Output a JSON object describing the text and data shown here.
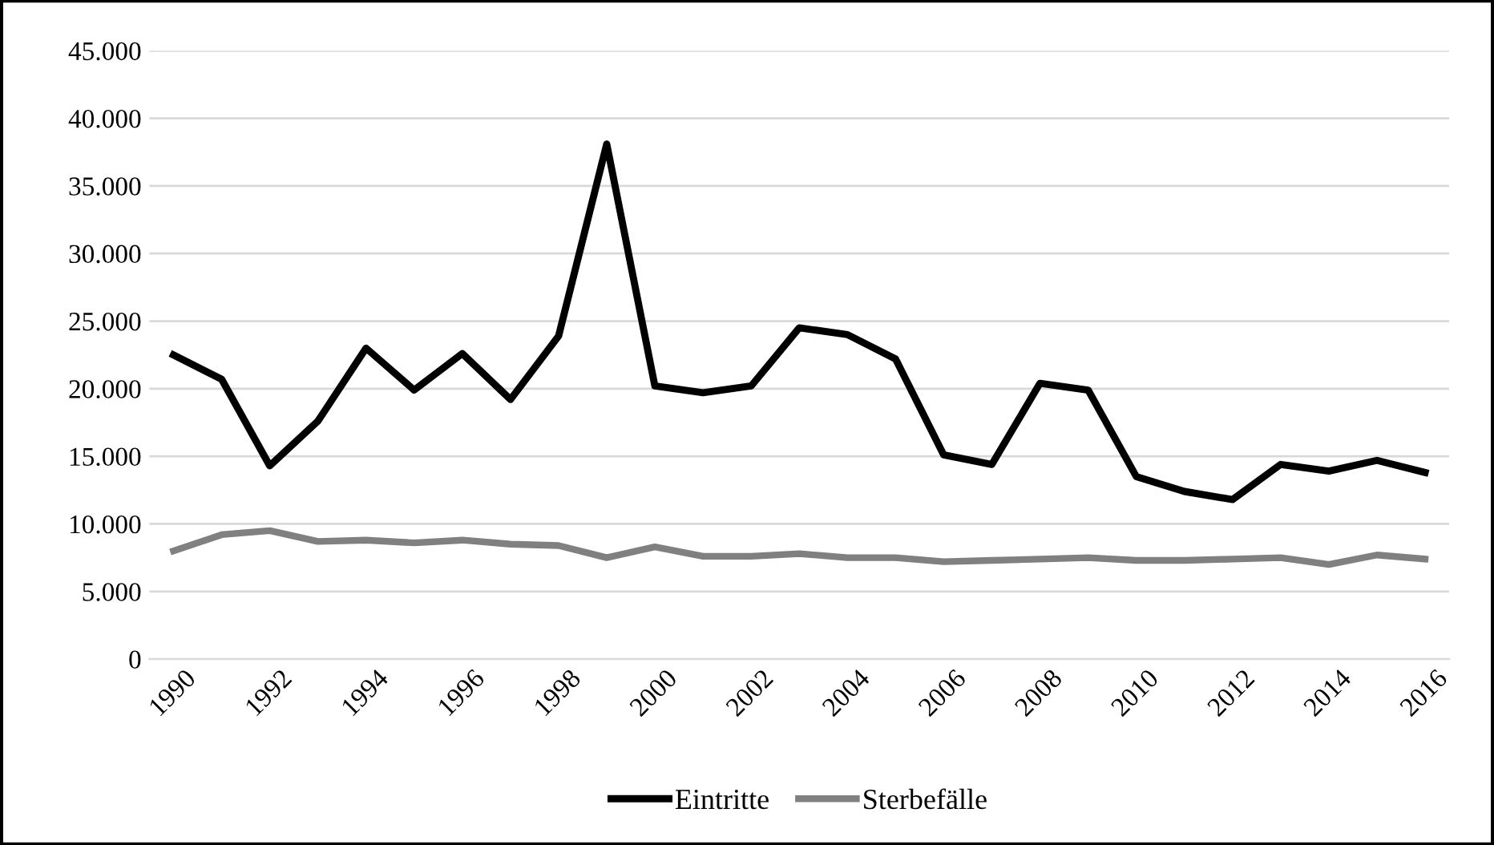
{
  "chart_data": {
    "type": "line",
    "x": [
      1990,
      1991,
      1992,
      1993,
      1994,
      1995,
      1996,
      1997,
      1998,
      1999,
      2000,
      2001,
      2002,
      2003,
      2004,
      2005,
      2006,
      2007,
      2008,
      2009,
      2010,
      2011,
      2012,
      2013,
      2014,
      2015,
      2016
    ],
    "series": [
      {
        "name": "Eintritte",
        "color": "#000000",
        "values": [
          22500,
          20700,
          14300,
          17600,
          23000,
          19900,
          22600,
          19200,
          23900,
          38100,
          20200,
          19700,
          20200,
          24500,
          24000,
          22200,
          15100,
          14400,
          20400,
          19900,
          13500,
          12400,
          11800,
          14400,
          13900,
          14700,
          13800
        ]
      },
      {
        "name": "Sterbefälle",
        "color": "#808080",
        "values": [
          8000,
          9200,
          9500,
          8700,
          8800,
          8600,
          8800,
          8500,
          8400,
          7500,
          8300,
          7600,
          7600,
          7800,
          7500,
          7500,
          7200,
          7300,
          7400,
          7500,
          7300,
          7300,
          7400,
          7500,
          7000,
          7700,
          7400
        ]
      }
    ],
    "xlim": [
      1989.5,
      2016.5
    ],
    "xticks": [
      1990,
      1992,
      1994,
      1996,
      1998,
      2000,
      2002,
      2004,
      2006,
      2008,
      2010,
      2012,
      2014,
      2016
    ],
    "ylim": [
      0,
      45000
    ],
    "yticks": [
      {
        "value": 0,
        "label": "0"
      },
      {
        "value": 5000,
        "label": "5.000"
      },
      {
        "value": 10000,
        "label": "10.000"
      },
      {
        "value": 15000,
        "label": "15.000"
      },
      {
        "value": 20000,
        "label": "20.000"
      },
      {
        "value": 25000,
        "label": "25.000"
      },
      {
        "value": 30000,
        "label": "30.000"
      },
      {
        "value": 35000,
        "label": "35.000"
      },
      {
        "value": 40000,
        "label": "40.000"
      },
      {
        "value": 45000,
        "label": "45.000"
      }
    ],
    "grid": "y",
    "legend": "bottom",
    "marker": "none",
    "line_style": "solid"
  }
}
